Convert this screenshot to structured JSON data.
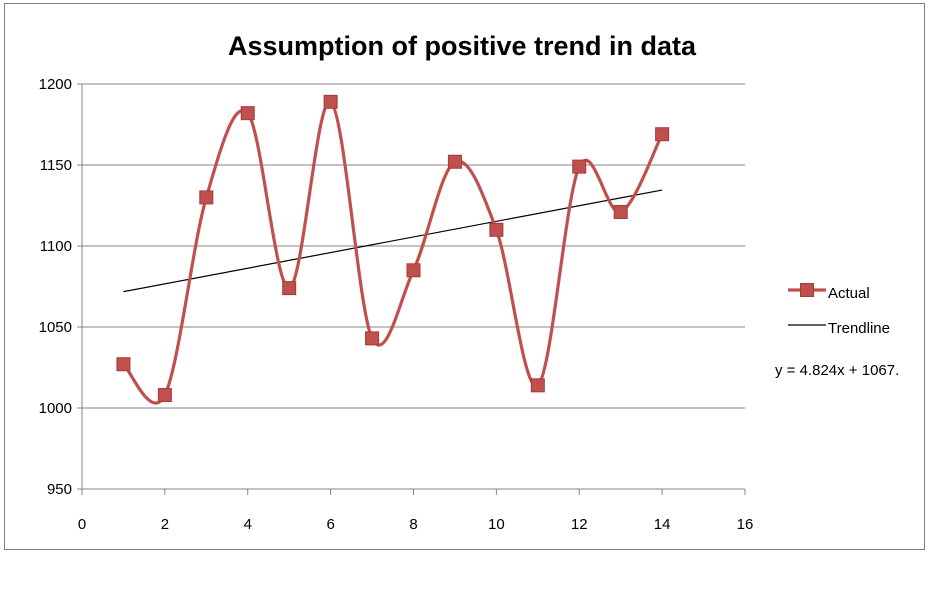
{
  "chart_data": {
    "type": "line",
    "title": "Assumption of positive trend in data",
    "xlabel": "",
    "ylabel": "",
    "xlim": [
      0,
      16
    ],
    "ylim": [
      950,
      1200
    ],
    "x_ticks": [
      "0",
      "2",
      "4",
      "6",
      "8",
      "10",
      "12",
      "14",
      "16"
    ],
    "y_ticks": [
      "950",
      "1000",
      "1050",
      "1100",
      "1150",
      "1200"
    ],
    "grid": "horizontal",
    "legend_position": "right",
    "series": [
      {
        "name": "Actual",
        "style": "smoothed line with square markers",
        "color": "#c0504d",
        "marker_color": "#c0504d",
        "points": [
          {
            "x": 1,
            "y": 1027
          },
          {
            "x": 2,
            "y": 1008
          },
          {
            "x": 3,
            "y": 1130
          },
          {
            "x": 4,
            "y": 1182
          },
          {
            "x": 5,
            "y": 1074
          },
          {
            "x": 6,
            "y": 1189
          },
          {
            "x": 7,
            "y": 1043
          },
          {
            "x": 8,
            "y": 1085
          },
          {
            "x": 9,
            "y": 1152
          },
          {
            "x": 10,
            "y": 1110
          },
          {
            "x": 11,
            "y": 1014
          },
          {
            "x": 12,
            "y": 1149
          },
          {
            "x": 13,
            "y": 1121
          },
          {
            "x": 14,
            "y": 1169
          }
        ]
      },
      {
        "name": "Trendline",
        "style": "linear",
        "color": "#000000",
        "x_range": [
          1,
          14
        ],
        "slope": 4.824,
        "intercept": 1067
      }
    ],
    "annotations": [
      {
        "text": "y = 4.824x + 1067."
      }
    ]
  }
}
